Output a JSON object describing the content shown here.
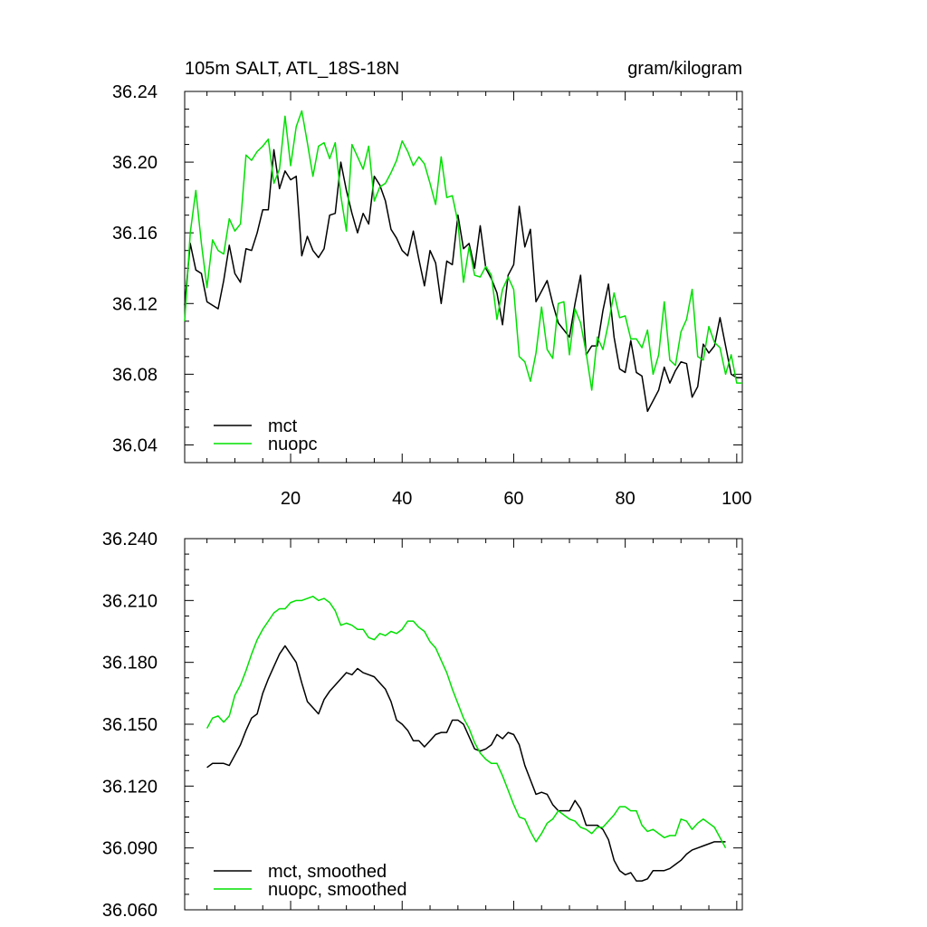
{
  "chart_data": [
    {
      "type": "line",
      "title_left": "105m SALT, ATL_18S-18N",
      "title_right": "gram/kilogram",
      "xlabel": "",
      "ylabel": "",
      "xlim": [
        1,
        101
      ],
      "ylim": [
        36.03,
        36.24
      ],
      "xticks": [
        20,
        40,
        60,
        80,
        100
      ],
      "xtick_labels": [
        "20",
        "40",
        "60",
        "80",
        "100"
      ],
      "yticks": [
        36.04,
        36.08,
        36.12,
        36.16,
        36.2,
        36.24
      ],
      "ytick_labels": [
        "36.04",
        "36.08",
        "36.12",
        "36.16",
        "36.20",
        "36.24"
      ],
      "legend_position": "bottom-left",
      "x": [
        1,
        2,
        3,
        4,
        5,
        6,
        7,
        8,
        9,
        10,
        11,
        12,
        13,
        14,
        15,
        16,
        17,
        18,
        19,
        20,
        21,
        22,
        23,
        24,
        25,
        26,
        27,
        28,
        29,
        30,
        31,
        32,
        33,
        34,
        35,
        36,
        37,
        38,
        39,
        40,
        41,
        42,
        43,
        44,
        45,
        46,
        47,
        48,
        49,
        50,
        51,
        52,
        53,
        54,
        55,
        56,
        57,
        58,
        59,
        60,
        61,
        62,
        63,
        64,
        65,
        66,
        67,
        68,
        69,
        70,
        71,
        72,
        73,
        74,
        75,
        76,
        77,
        78,
        79,
        80,
        81,
        82,
        83,
        84,
        85,
        86,
        87,
        88,
        89,
        90,
        91,
        92,
        93,
        94,
        95,
        96,
        97,
        98,
        99,
        100,
        101
      ],
      "series": [
        {
          "name": "mct",
          "color": "#000000",
          "values": [
            36.119,
            36.154,
            36.139,
            36.137,
            36.121,
            36.119,
            36.117,
            36.133,
            36.153,
            36.137,
            36.132,
            36.151,
            36.15,
            36.16,
            36.173,
            36.173,
            36.207,
            36.185,
            36.195,
            36.19,
            36.192,
            36.147,
            36.158,
            36.15,
            36.146,
            36.151,
            36.17,
            36.171,
            36.2,
            36.184,
            36.171,
            36.16,
            36.171,
            36.165,
            36.192,
            36.187,
            36.178,
            36.162,
            36.157,
            36.15,
            36.147,
            36.161,
            36.145,
            36.13,
            36.15,
            36.143,
            36.12,
            36.144,
            36.142,
            36.17,
            36.151,
            36.154,
            36.14,
            36.164,
            36.14,
            36.134,
            36.126,
            36.108,
            36.136,
            36.142,
            36.175,
            36.152,
            36.162,
            36.121,
            36.127,
            36.133,
            36.12,
            36.109,
            36.105,
            36.101,
            36.12,
            36.136,
            36.091,
            36.096,
            36.096,
            36.116,
            36.131,
            36.101,
            36.083,
            36.081,
            36.099,
            36.081,
            36.079,
            36.059,
            36.065,
            36.071,
            36.084,
            36.075,
            36.082,
            36.087,
            36.086,
            36.067,
            36.073,
            36.097,
            36.092,
            36.096,
            36.112,
            36.096,
            36.08,
            36.078,
            36.078
          ]
        },
        {
          "name": "nuopc",
          "color": "#00e000",
          "values": [
            36.11,
            36.16,
            36.184,
            36.154,
            36.129,
            36.156,
            36.15,
            36.148,
            36.168,
            36.161,
            36.165,
            36.204,
            36.201,
            36.206,
            36.209,
            36.213,
            36.188,
            36.196,
            36.226,
            36.198,
            36.22,
            36.229,
            36.211,
            36.192,
            36.209,
            36.211,
            36.202,
            36.211,
            36.181,
            36.161,
            36.21,
            36.203,
            36.196,
            36.209,
            36.178,
            36.186,
            36.188,
            36.194,
            36.201,
            36.212,
            36.206,
            36.198,
            36.203,
            36.199,
            36.188,
            36.176,
            36.203,
            36.18,
            36.181,
            36.166,
            36.132,
            36.152,
            36.136,
            36.135,
            36.141,
            36.136,
            36.111,
            36.128,
            36.135,
            36.128,
            36.09,
            36.087,
            36.076,
            36.092,
            36.118,
            36.094,
            36.089,
            36.12,
            36.121,
            36.091,
            36.117,
            36.109,
            36.092,
            36.071,
            36.101,
            36.094,
            36.109,
            36.126,
            36.112,
            36.113,
            36.1,
            36.1,
            36.095,
            36.105,
            36.08,
            36.091,
            36.121,
            36.088,
            36.085,
            36.104,
            36.111,
            36.128,
            36.09,
            36.088,
            36.107,
            36.098,
            36.095,
            36.08,
            36.091,
            36.075,
            36.075
          ]
        }
      ]
    },
    {
      "type": "line",
      "title": "",
      "xlabel": "",
      "ylabel": "",
      "xlim": [
        1,
        101
      ],
      "ylim": [
        36.06,
        36.24
      ],
      "xticks": [
        20,
        40,
        60,
        80,
        100
      ],
      "yticks": [
        36.06,
        36.09,
        36.12,
        36.15,
        36.18,
        36.21,
        36.24
      ],
      "ytick_labels": [
        "36.060",
        "36.090",
        "36.120",
        "36.150",
        "36.180",
        "36.210",
        "36.240"
      ],
      "legend_position": "bottom-left",
      "x": [
        5,
        6,
        7,
        8,
        9,
        10,
        11,
        12,
        13,
        14,
        15,
        16,
        17,
        18,
        19,
        20,
        21,
        22,
        23,
        24,
        25,
        26,
        27,
        28,
        29,
        30,
        31,
        32,
        33,
        34,
        35,
        36,
        37,
        38,
        39,
        40,
        41,
        42,
        43,
        44,
        45,
        46,
        47,
        48,
        49,
        50,
        51,
        52,
        53,
        54,
        55,
        56,
        57,
        58,
        59,
        60,
        61,
        62,
        63,
        64,
        65,
        66,
        67,
        68,
        69,
        70,
        71,
        72,
        73,
        74,
        75,
        76,
        77,
        78,
        79,
        80,
        81,
        82,
        83,
        84,
        85,
        86,
        87,
        88,
        89,
        90,
        91,
        92,
        93,
        94,
        95,
        96,
        97,
        98
      ],
      "series": [
        {
          "name": "mct, smoothed",
          "color": "#000000",
          "values": [
            36.129,
            36.131,
            36.131,
            36.131,
            36.13,
            36.135,
            36.14,
            36.147,
            36.153,
            36.155,
            36.165,
            36.172,
            36.178,
            36.184,
            36.188,
            36.184,
            36.18,
            36.17,
            36.161,
            36.158,
            36.155,
            36.162,
            36.166,
            36.169,
            36.172,
            36.175,
            36.174,
            36.177,
            36.175,
            36.174,
            36.173,
            36.17,
            36.167,
            36.161,
            36.152,
            36.15,
            36.147,
            36.142,
            36.142,
            36.139,
            36.142,
            36.145,
            36.146,
            36.146,
            36.152,
            36.152,
            36.15,
            36.144,
            36.138,
            36.137,
            36.138,
            36.14,
            36.145,
            36.143,
            36.146,
            36.145,
            36.14,
            36.13,
            36.123,
            36.116,
            36.117,
            36.116,
            36.111,
            36.108,
            36.108,
            36.108,
            36.113,
            36.109,
            36.101,
            36.101,
            36.101,
            36.099,
            36.094,
            36.084,
            36.079,
            36.077,
            36.078,
            36.074,
            36.074,
            36.075,
            36.079,
            36.079,
            36.079,
            36.08,
            36.082,
            36.084,
            36.087,
            36.089,
            36.09,
            36.091,
            36.092,
            36.093,
            36.093,
            36.093
          ]
        },
        {
          "name": "nuopc, smoothed",
          "color": "#00e000",
          "values": [
            36.148,
            36.153,
            36.154,
            36.151,
            36.154,
            36.164,
            36.169,
            36.176,
            36.184,
            36.191,
            36.196,
            36.2,
            36.204,
            36.206,
            36.206,
            36.209,
            36.21,
            36.21,
            36.211,
            36.212,
            36.21,
            36.211,
            36.209,
            36.205,
            36.198,
            36.199,
            36.198,
            36.196,
            36.196,
            36.192,
            36.191,
            36.194,
            36.193,
            36.195,
            36.194,
            36.196,
            36.2,
            36.2,
            36.197,
            36.195,
            36.19,
            36.187,
            36.181,
            36.175,
            36.167,
            36.16,
            36.153,
            36.148,
            36.141,
            36.136,
            36.133,
            36.131,
            36.131,
            36.125,
            36.118,
            36.111,
            36.105,
            36.104,
            36.098,
            36.093,
            36.097,
            36.102,
            36.104,
            36.108,
            36.106,
            36.104,
            36.103,
            36.1,
            36.099,
            36.097,
            36.1,
            36.1,
            36.103,
            36.106,
            36.11,
            36.11,
            36.108,
            36.108,
            36.101,
            36.098,
            36.099,
            36.097,
            36.095,
            36.096,
            36.096,
            36.104,
            36.103,
            36.099,
            36.102,
            36.104,
            36.102,
            36.1,
            36.095,
            36.09
          ]
        }
      ]
    }
  ]
}
